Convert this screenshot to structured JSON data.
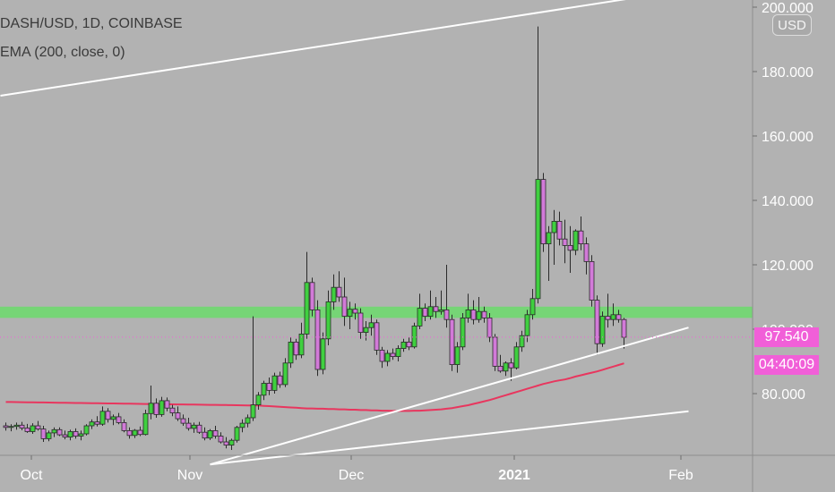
{
  "header": {
    "title": "DASH/USD, 1D, COINBASE",
    "indicator": "EMA (200, close, 0)"
  },
  "currency_button": "USD",
  "price_tag": {
    "value": "97.540",
    "countdown": "04:40:09"
  },
  "colors": {
    "background": "#b2b2b2",
    "up": "#3fd03f",
    "down": "#d27ad8",
    "wick": "#2a2a2a",
    "ema": "#e8365e",
    "zone": "#6fd86f",
    "trendline": "#ffffff",
    "price_line": "#f15fd8"
  },
  "chart_data": {
    "type": "candlestick",
    "title": "DASH/USD, 1D, COINBASE",
    "x_ticks": [
      "Oct",
      "Nov",
      "Dec",
      "2021",
      "Feb"
    ],
    "y_ticks": [
      "80.000",
      "100.000",
      "120.000",
      "140.000",
      "160.000",
      "180.000",
      "200.000"
    ],
    "ylim": [
      58,
      204
    ],
    "last_price": 97.54,
    "candles": [
      {
        "o": 70.0,
        "h": 71.0,
        "l": 68.5,
        "c": 69.5
      },
      {
        "o": 69.5,
        "h": 70.5,
        "l": 68.3,
        "c": 69.8
      },
      {
        "o": 69.8,
        "h": 71.0,
        "l": 68.8,
        "c": 70.2
      },
      {
        "o": 70.2,
        "h": 71.2,
        "l": 68.6,
        "c": 69.3
      },
      {
        "o": 69.3,
        "h": 70.6,
        "l": 67.8,
        "c": 68.2
      },
      {
        "o": 68.2,
        "h": 70.8,
        "l": 67.5,
        "c": 70.0
      },
      {
        "o": 70.0,
        "h": 71.5,
        "l": 68.5,
        "c": 69.0
      },
      {
        "o": 69.0,
        "h": 70.0,
        "l": 65.0,
        "c": 66.0
      },
      {
        "o": 66.0,
        "h": 68.5,
        "l": 65.2,
        "c": 67.8
      },
      {
        "o": 67.8,
        "h": 69.5,
        "l": 66.5,
        "c": 68.8
      },
      {
        "o": 68.8,
        "h": 69.5,
        "l": 66.8,
        "c": 67.2
      },
      {
        "o": 67.2,
        "h": 68.5,
        "l": 65.8,
        "c": 66.5
      },
      {
        "o": 66.5,
        "h": 68.8,
        "l": 65.5,
        "c": 68.2
      },
      {
        "o": 68.2,
        "h": 69.2,
        "l": 66.0,
        "c": 66.8
      },
      {
        "o": 66.8,
        "h": 68.5,
        "l": 65.5,
        "c": 67.5
      },
      {
        "o": 67.5,
        "h": 70.5,
        "l": 67.0,
        "c": 70.0
      },
      {
        "o": 70.0,
        "h": 72.0,
        "l": 69.0,
        "c": 71.2
      },
      {
        "o": 71.2,
        "h": 73.0,
        "l": 69.8,
        "c": 70.5
      },
      {
        "o": 70.5,
        "h": 76.0,
        "l": 70.0,
        "c": 74.5
      },
      {
        "o": 74.5,
        "h": 75.5,
        "l": 71.0,
        "c": 72.0
      },
      {
        "o": 72.0,
        "h": 73.5,
        "l": 70.2,
        "c": 72.8
      },
      {
        "o": 72.8,
        "h": 74.0,
        "l": 70.5,
        "c": 71.0
      },
      {
        "o": 71.0,
        "h": 72.0,
        "l": 68.0,
        "c": 68.5
      },
      {
        "o": 68.5,
        "h": 69.5,
        "l": 66.0,
        "c": 67.0
      },
      {
        "o": 67.0,
        "h": 69.0,
        "l": 66.2,
        "c": 68.6
      },
      {
        "o": 68.6,
        "h": 69.8,
        "l": 66.8,
        "c": 67.3
      },
      {
        "o": 67.3,
        "h": 75.0,
        "l": 67.0,
        "c": 73.8
      },
      {
        "o": 73.8,
        "h": 82.5,
        "l": 72.0,
        "c": 77.0
      },
      {
        "o": 77.0,
        "h": 78.5,
        "l": 72.5,
        "c": 73.5
      },
      {
        "o": 73.5,
        "h": 79.0,
        "l": 72.8,
        "c": 77.8
      },
      {
        "o": 77.8,
        "h": 78.8,
        "l": 74.5,
        "c": 75.5
      },
      {
        "o": 75.5,
        "h": 76.5,
        "l": 73.0,
        "c": 74.0
      },
      {
        "o": 74.0,
        "h": 76.0,
        "l": 71.5,
        "c": 72.2
      },
      {
        "o": 72.2,
        "h": 73.5,
        "l": 70.0,
        "c": 70.8
      },
      {
        "o": 70.8,
        "h": 72.5,
        "l": 68.5,
        "c": 69.2
      },
      {
        "o": 69.2,
        "h": 71.0,
        "l": 67.8,
        "c": 70.2
      },
      {
        "o": 70.2,
        "h": 71.2,
        "l": 67.5,
        "c": 68.0
      },
      {
        "o": 68.0,
        "h": 69.5,
        "l": 65.5,
        "c": 66.2
      },
      {
        "o": 66.2,
        "h": 69.0,
        "l": 65.6,
        "c": 68.5
      },
      {
        "o": 68.5,
        "h": 70.0,
        "l": 66.0,
        "c": 66.8
      },
      {
        "o": 66.8,
        "h": 68.0,
        "l": 64.5,
        "c": 65.0
      },
      {
        "o": 65.0,
        "h": 66.5,
        "l": 63.0,
        "c": 64.0
      },
      {
        "o": 64.0,
        "h": 66.0,
        "l": 62.5,
        "c": 65.5
      },
      {
        "o": 65.5,
        "h": 70.0,
        "l": 64.8,
        "c": 69.5
      },
      {
        "o": 69.5,
        "h": 72.0,
        "l": 68.0,
        "c": 70.8
      },
      {
        "o": 70.8,
        "h": 73.5,
        "l": 69.5,
        "c": 72.5
      },
      {
        "o": 72.5,
        "h": 104.0,
        "l": 71.5,
        "c": 76.5
      },
      {
        "o": 76.5,
        "h": 80.5,
        "l": 75.0,
        "c": 79.5
      },
      {
        "o": 79.5,
        "h": 84.0,
        "l": 78.0,
        "c": 83.2
      },
      {
        "o": 83.2,
        "h": 85.0,
        "l": 79.5,
        "c": 81.0
      },
      {
        "o": 81.0,
        "h": 86.5,
        "l": 80.0,
        "c": 85.5
      },
      {
        "o": 85.5,
        "h": 86.8,
        "l": 81.8,
        "c": 82.8
      },
      {
        "o": 82.8,
        "h": 91.0,
        "l": 82.0,
        "c": 89.5
      },
      {
        "o": 89.5,
        "h": 97.5,
        "l": 88.0,
        "c": 96.0
      },
      {
        "o": 96.0,
        "h": 97.0,
        "l": 90.5,
        "c": 92.0
      },
      {
        "o": 92.0,
        "h": 102.0,
        "l": 91.0,
        "c": 98.5
      },
      {
        "o": 98.5,
        "h": 124.0,
        "l": 97.0,
        "c": 114.5
      },
      {
        "o": 114.5,
        "h": 116.0,
        "l": 104.0,
        "c": 106.0
      },
      {
        "o": 106.0,
        "h": 109.0,
        "l": 85.5,
        "c": 87.5
      },
      {
        "o": 87.5,
        "h": 99.0,
        "l": 86.0,
        "c": 97.0
      },
      {
        "o": 97.0,
        "h": 112.0,
        "l": 95.0,
        "c": 108.5
      },
      {
        "o": 108.5,
        "h": 117.0,
        "l": 106.0,
        "c": 113.0
      },
      {
        "o": 113.0,
        "h": 118.0,
        "l": 108.5,
        "c": 110.0
      },
      {
        "o": 110.0,
        "h": 116.0,
        "l": 101.0,
        "c": 104.0
      },
      {
        "o": 104.0,
        "h": 108.5,
        "l": 100.0,
        "c": 106.2
      },
      {
        "o": 106.2,
        "h": 108.0,
        "l": 103.0,
        "c": 105.0
      },
      {
        "o": 105.0,
        "h": 106.5,
        "l": 97.0,
        "c": 99.0
      },
      {
        "o": 99.0,
        "h": 102.5,
        "l": 96.5,
        "c": 100.5
      },
      {
        "o": 100.5,
        "h": 104.5,
        "l": 98.0,
        "c": 102.0
      },
      {
        "o": 102.0,
        "h": 103.0,
        "l": 92.0,
        "c": 93.5
      },
      {
        "o": 93.5,
        "h": 94.5,
        "l": 88.0,
        "c": 90.0
      },
      {
        "o": 90.0,
        "h": 93.5,
        "l": 88.5,
        "c": 92.5
      },
      {
        "o": 92.5,
        "h": 94.0,
        "l": 90.5,
        "c": 91.5
      },
      {
        "o": 91.5,
        "h": 95.0,
        "l": 90.0,
        "c": 94.0
      },
      {
        "o": 94.0,
        "h": 97.0,
        "l": 93.0,
        "c": 96.0
      },
      {
        "o": 96.0,
        "h": 97.5,
        "l": 93.5,
        "c": 94.5
      },
      {
        "o": 94.5,
        "h": 102.0,
        "l": 94.0,
        "c": 101.0
      },
      {
        "o": 101.0,
        "h": 111.0,
        "l": 100.0,
        "c": 106.5
      },
      {
        "o": 106.5,
        "h": 108.0,
        "l": 102.5,
        "c": 104.0
      },
      {
        "o": 104.0,
        "h": 112.0,
        "l": 103.0,
        "c": 107.0
      },
      {
        "o": 107.0,
        "h": 110.0,
        "l": 103.5,
        "c": 105.5
      },
      {
        "o": 105.5,
        "h": 112.0,
        "l": 104.5,
        "c": 106.0
      },
      {
        "o": 106.0,
        "h": 120.0,
        "l": 100.5,
        "c": 103.0
      },
      {
        "o": 103.0,
        "h": 104.5,
        "l": 87.0,
        "c": 89.0
      },
      {
        "o": 89.0,
        "h": 96.0,
        "l": 86.5,
        "c": 94.5
      },
      {
        "o": 94.5,
        "h": 105.0,
        "l": 93.5,
        "c": 103.5
      },
      {
        "o": 103.5,
        "h": 111.0,
        "l": 102.0,
        "c": 106.0
      },
      {
        "o": 106.0,
        "h": 109.0,
        "l": 101.5,
        "c": 103.0
      },
      {
        "o": 103.0,
        "h": 110.0,
        "l": 102.0,
        "c": 105.5
      },
      {
        "o": 105.5,
        "h": 107.0,
        "l": 102.0,
        "c": 103.5
      },
      {
        "o": 103.5,
        "h": 105.0,
        "l": 96.0,
        "c": 97.5
      },
      {
        "o": 97.5,
        "h": 98.5,
        "l": 87.0,
        "c": 88.5
      },
      {
        "o": 88.5,
        "h": 92.0,
        "l": 86.5,
        "c": 87.0
      },
      {
        "o": 87.0,
        "h": 90.0,
        "l": 85.5,
        "c": 89.5
      },
      {
        "o": 89.5,
        "h": 91.0,
        "l": 84.0,
        "c": 88.0
      },
      {
        "o": 88.0,
        "h": 96.0,
        "l": 87.5,
        "c": 94.5
      },
      {
        "o": 94.5,
        "h": 99.5,
        "l": 93.0,
        "c": 98.0
      },
      {
        "o": 98.0,
        "h": 106.0,
        "l": 96.0,
        "c": 104.5
      },
      {
        "o": 104.5,
        "h": 112.5,
        "l": 103.0,
        "c": 109.5
      },
      {
        "o": 109.5,
        "h": 194.0,
        "l": 108.0,
        "c": 146.5
      },
      {
        "o": 146.5,
        "h": 148.5,
        "l": 124.0,
        "c": 126.5
      },
      {
        "o": 126.5,
        "h": 132.0,
        "l": 115.0,
        "c": 130.0
      },
      {
        "o": 130.0,
        "h": 137.0,
        "l": 120.0,
        "c": 133.5
      },
      {
        "o": 133.5,
        "h": 136.5,
        "l": 126.0,
        "c": 128.0
      },
      {
        "o": 128.0,
        "h": 134.0,
        "l": 120.5,
        "c": 126.0
      },
      {
        "o": 126.0,
        "h": 132.0,
        "l": 117.5,
        "c": 124.5
      },
      {
        "o": 124.5,
        "h": 131.0,
        "l": 123.0,
        "c": 130.5
      },
      {
        "o": 130.5,
        "h": 135.0,
        "l": 124.5,
        "c": 126.5
      },
      {
        "o": 126.5,
        "h": 128.5,
        "l": 117.0,
        "c": 121.0
      },
      {
        "o": 121.0,
        "h": 123.0,
        "l": 107.0,
        "c": 109.0
      },
      {
        "o": 109.0,
        "h": 110.5,
        "l": 92.0,
        "c": 95.5
      },
      {
        "o": 95.5,
        "h": 105.5,
        "l": 94.5,
        "c": 104.0
      },
      {
        "o": 104.0,
        "h": 111.0,
        "l": 100.5,
        "c": 103.0
      },
      {
        "o": 103.0,
        "h": 108.0,
        "l": 101.0,
        "c": 104.5
      },
      {
        "o": 104.5,
        "h": 106.0,
        "l": 102.0,
        "c": 103.0
      },
      {
        "o": 103.0,
        "h": 103.5,
        "l": 94.0,
        "c": 97.5
      }
    ],
    "ema_200": [
      76.3,
      76.2,
      76.1,
      76.0,
      75.9,
      75.8,
      75.7,
      75.6,
      75.5,
      75.4,
      75.4,
      75.3,
      75.3,
      75.2,
      75.2,
      75.1,
      75.1,
      75.0,
      75.0,
      74.9,
      74.9,
      74.8,
      74.8,
      74.7,
      74.7,
      74.6,
      74.6,
      74.6,
      74.6,
      74.7,
      74.7,
      74.8,
      74.9,
      75.0,
      75.1,
      75.3,
      75.5,
      75.8,
      76.1,
      76.4,
      76.8,
      77.2,
      77.6,
      78.0,
      78.5,
      79.0,
      79.5,
      80.0,
      80.5,
      81.0,
      81.5,
      82.0,
      82.5,
      83.0,
      83.4,
      83.8,
      84.1,
      84.4,
      84.8,
      85.3,
      85.7,
      86.1,
      86.5,
      86.9,
      87.4,
      87.9,
      88.4,
      88.9,
      89.4,
      89.9,
      90.4
    ],
    "ema_start_index": 47,
    "resistance_zone": [
      103.5,
      107.0
    ],
    "trendlines": [
      {
        "from": {
          "i": -1,
          "y": 172.5
        },
        "to": {
          "i": 127,
          "y": 205.5
        }
      },
      {
        "from": {
          "i": 38,
          "y": 58.0
        },
        "to": {
          "i": 127,
          "y": 100.5
        }
      },
      {
        "from": {
          "i": 38,
          "y": 58.0
        },
        "to": {
          "i": 127,
          "y": 74.5
        }
      }
    ]
  }
}
